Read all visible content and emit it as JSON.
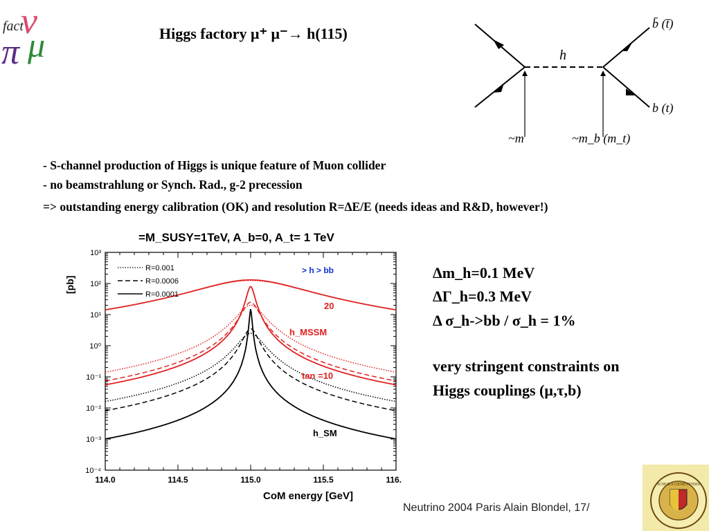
{
  "logo": {
    "caption": "fact",
    "letters": [
      "ν",
      "π",
      "μ"
    ]
  },
  "title": {
    "prefix": "Higgs factory ",
    "particles": "μ⁺ μ⁻→ h(115)"
  },
  "feynman": {
    "propagator": "h",
    "top_right": "b̄ (t̄)",
    "bottom_right": "b (t)",
    "coupling_left": "~m",
    "coupling_right": "~m_b (m_t)"
  },
  "bullets": [
    "- S-channel production of Higgs is unique feature of Muon collider",
    "- no beamstrahlung or Synch. Rad.,  g-2 precession",
    "=> outstanding energy calibration (OK) and resolution  R=ΔE/E (needs ideas and R&D, however!)"
  ],
  "results": {
    "r1": "Δm_h=0.1 MeV",
    "r2": "ΔΓ_h=0.3 MeV",
    "r3": "Δ σ_h->bb / σ_h = 1%",
    "conclusion_1": "very stringent constraints on",
    "conclusion_2": "Higgs couplings (μ,τ,b)"
  },
  "footer": {
    "text": "Neutrino 2004 Paris   Alain Blondel, 17/"
  },
  "seal": {
    "text": "SCHOLA GENEVENSIS"
  },
  "chart_data": {
    "type": "line",
    "title": "=M_SUSY=1TeV,  A_b=0, A_t= 1 TeV",
    "xlabel": "CoM energy [GeV]",
    "ylabel": "[pb]",
    "xlim": [
      114.0,
      116.0
    ],
    "ylim_log10": [
      -4,
      3
    ],
    "x_ticks": [
      "114.0",
      "114.5",
      "115.0",
      "115.5",
      "116.0"
    ],
    "y_ticks": [
      "10⁻⁴",
      "10⁻³",
      "10⁻²",
      "10⁻¹",
      "10⁰",
      "10¹",
      "10²",
      "10³"
    ],
    "legend": [
      "R=0.001",
      "R=0.0006",
      "R=0.0001"
    ],
    "legend_position": "top-left",
    "annotations": [
      {
        "text": "> h  > bb",
        "color": "#1030d0"
      },
      {
        "text": "20",
        "color": "#e02020"
      },
      {
        "text": "h_MSSM",
        "color": "#e02020"
      },
      {
        "text": "tan  =10",
        "color": "#e02020"
      },
      {
        "text": "h_SM",
        "color": "#000000"
      }
    ],
    "series": [
      {
        "group": "tanβ=20",
        "color": "#e02020",
        "x0": 115.0,
        "width_GeV": 0.7,
        "curves": [
          {
            "R": 0.001,
            "peak": 125,
            "style": "dotted"
          },
          {
            "R": 0.0001,
            "peak": 130,
            "style": "solid"
          }
        ]
      },
      {
        "group": "tanβ=10",
        "color": "#e02020",
        "x0": 115.0,
        "width_GeV": 0.05,
        "curves": [
          {
            "R": 0.001,
            "peak": 20,
            "style": "dotted"
          },
          {
            "R": 0.0006,
            "peak": 25,
            "style": "dashed"
          },
          {
            "R": 0.0001,
            "peak": 80,
            "style": "solid"
          }
        ]
      },
      {
        "group": "h_SM",
        "color": "#000000",
        "x0": 115.0,
        "width_GeV": 0.003,
        "curves": [
          {
            "R": 0.001,
            "peak": 2.5,
            "style": "dotted"
          },
          {
            "R": 0.0006,
            "peak": 3.5,
            "style": "dashed"
          },
          {
            "R": 0.0001,
            "peak": 15,
            "style": "solid"
          }
        ]
      }
    ]
  }
}
